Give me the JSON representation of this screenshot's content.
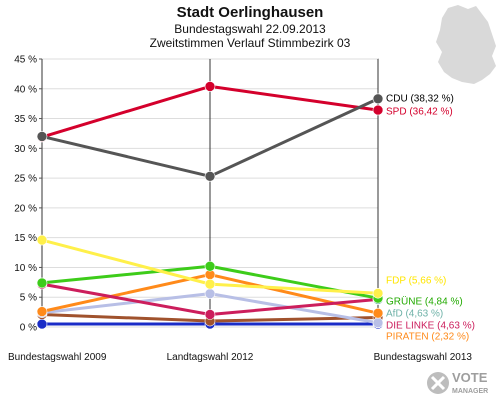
{
  "header": {
    "title": "Stadt Oerlinghausen",
    "subtitle1": "Bundestagswahl 22.09.2013",
    "subtitle2": "Zweitstimmen Verlauf Stimmbezirk 03"
  },
  "branding": {
    "text_top": "VOTE",
    "text_bottom": "MANAGER",
    "icon": "vote-manager-logo"
  },
  "chart_data": {
    "type": "line",
    "title": "Stadt Oerlinghausen",
    "xlabel": "",
    "ylabel": "",
    "ylim": [
      0,
      45
    ],
    "yticks": [
      0,
      5,
      10,
      15,
      20,
      25,
      30,
      35,
      40,
      45
    ],
    "ytick_labels": [
      "0 %",
      "5 %",
      "10 %",
      "15 %",
      "20 %",
      "25 %",
      "30 %",
      "35 %",
      "40 %",
      "45 %"
    ],
    "grid": "horizontal",
    "legend_placement": "right",
    "categories": [
      "Bundestagswahl 2009",
      "Landtagswahl 2012",
      "Bundestagswahl 2013"
    ],
    "series": [
      {
        "name": "CDU",
        "color": "#555555",
        "values": [
          32.0,
          25.3,
          38.32
        ],
        "legend": "CDU (38,32 %)",
        "legend_color": "#000000"
      },
      {
        "name": "SPD",
        "color": "#d4002c",
        "values": [
          31.9,
          40.4,
          36.42
        ],
        "legend": "SPD (36,42 %)",
        "legend_color": "#d4002c"
      },
      {
        "name": "FDP",
        "color": "#fff04a",
        "values": [
          14.6,
          7.2,
          5.66
        ],
        "legend": "FDP (5,66 %)",
        "legend_color": "#ffe600"
      },
      {
        "name": "GRÜNE",
        "color": "#3dcc1a",
        "values": [
          7.4,
          10.2,
          4.84
        ],
        "legend": "GRÜNE (4,84 %)",
        "legend_color": "#22aa00"
      },
      {
        "name": "AfD",
        "color": "#6fb2a8",
        "values": [
          null,
          null,
          4.63
        ],
        "legend": "AfD (4,63 %)",
        "legend_color": "#6fb2a8"
      },
      {
        "name": "DIE LINKE",
        "color": "#cc1e5c",
        "values": [
          7.2,
          2.1,
          4.63
        ],
        "legend": "DIE LINKE (4,63 %)",
        "legend_color": "#cc1e5c"
      },
      {
        "name": "PIRATEN",
        "color": "#ff8a1a",
        "values": [
          2.6,
          8.8,
          2.32
        ],
        "legend": "PIRATEN (2,32 %)",
        "legend_color": "#ff8a1a"
      },
      {
        "name": "",
        "color": "#b8bfe6",
        "values": [
          2.4,
          5.6,
          0.7
        ],
        "legend": null
      },
      {
        "name": "",
        "color": "#a0522d",
        "values": [
          2.1,
          1.0,
          1.6
        ],
        "legend": null
      },
      {
        "name": "",
        "color": "#1a2cc7",
        "values": [
          0.5,
          0.5,
          0.5
        ],
        "legend": null
      }
    ]
  }
}
